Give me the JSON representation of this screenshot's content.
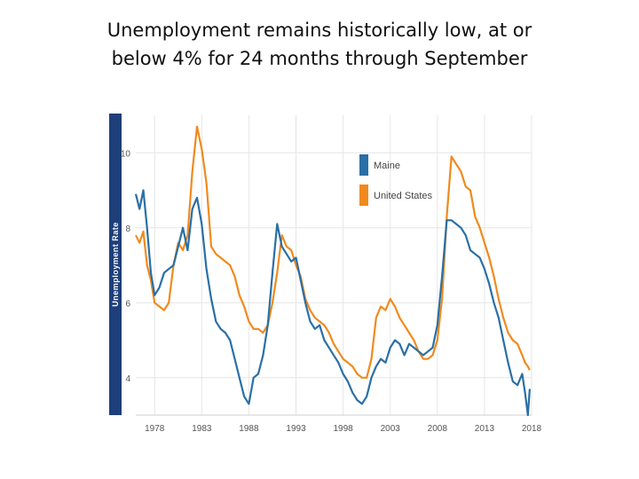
{
  "title_line1": "Unemployment remains historically low, at or",
  "title_line2": "below 4% for 24 months through September",
  "chart_data": {
    "type": "line",
    "ylabel": "Unemployment Rate",
    "xlim": [
      1976,
      2018
    ],
    "ylim": [
      3,
      11
    ],
    "y_ticks": [
      4,
      6,
      8,
      10
    ],
    "x_ticks": [
      1978,
      1983,
      1988,
      1993,
      1998,
      2003,
      2008,
      2013,
      2018
    ],
    "grid": true,
    "legend_position": "top-right",
    "colors": {
      "axis_bar": "#1f3f7a",
      "grid": "#e6e6e6",
      "maine": "#2a6fa6",
      "us": "#f08a1d"
    },
    "series": [
      {
        "name": "Maine",
        "x": [
          1976,
          1976.4,
          1976.8,
          1977.2,
          1977.6,
          1978,
          1978.5,
          1979,
          1979.5,
          1980,
          1980.5,
          1981,
          1981.5,
          1982,
          1982.5,
          1983,
          1983.5,
          1984,
          1984.5,
          1985,
          1985.5,
          1986,
          1986.5,
          1987,
          1987.5,
          1988,
          1988.5,
          1989,
          1989.5,
          1990,
          1990.5,
          1991,
          1991.5,
          1992,
          1992.5,
          1993,
          1993.5,
          1994,
          1994.5,
          1995,
          1995.5,
          1996,
          1996.5,
          1997,
          1997.5,
          1998,
          1998.5,
          1999,
          1999.5,
          2000,
          2000.5,
          2001,
          2001.5,
          2002,
          2002.5,
          2003,
          2003.5,
          2004,
          2004.5,
          2005,
          2005.5,
          2006,
          2006.5,
          2007,
          2007.5,
          2008,
          2008.5,
          2009,
          2009.5,
          2010,
          2010.5,
          2011,
          2011.5,
          2012,
          2012.5,
          2013,
          2013.5,
          2014,
          2014.5,
          2015,
          2015.5,
          2016,
          2016.5,
          2017,
          2017.3,
          2017.6,
          2017.8
        ],
        "values": [
          8.9,
          8.5,
          9.0,
          8.0,
          6.8,
          6.2,
          6.4,
          6.8,
          6.9,
          7.0,
          7.5,
          8.0,
          7.4,
          8.5,
          8.8,
          8.1,
          6.9,
          6.1,
          5.5,
          5.3,
          5.2,
          5.0,
          4.5,
          4.0,
          3.5,
          3.3,
          4.0,
          4.1,
          4.6,
          5.4,
          6.8,
          8.1,
          7.5,
          7.3,
          7.1,
          7.2,
          6.6,
          6.0,
          5.5,
          5.3,
          5.4,
          5.0,
          4.8,
          4.6,
          4.4,
          4.1,
          3.9,
          3.6,
          3.4,
          3.3,
          3.5,
          4.0,
          4.3,
          4.5,
          4.4,
          4.8,
          5.0,
          4.9,
          4.6,
          4.9,
          4.8,
          4.7,
          4.6,
          4.7,
          4.8,
          5.4,
          6.7,
          8.2,
          8.2,
          8.1,
          8.0,
          7.8,
          7.4,
          7.3,
          7.2,
          6.9,
          6.5,
          6.0,
          5.6,
          5.0,
          4.4,
          3.9,
          3.8,
          4.1,
          3.6,
          3.0,
          3.7
        ]
      },
      {
        "name": "United States",
        "x": [
          1976,
          1976.4,
          1976.8,
          1977.2,
          1977.6,
          1978,
          1978.5,
          1979,
          1979.5,
          1980,
          1980.5,
          1981,
          1981.5,
          1982,
          1982.5,
          1983,
          1983.5,
          1984,
          1984.5,
          1985,
          1985.5,
          1986,
          1986.5,
          1987,
          1987.5,
          1988,
          1988.5,
          1989,
          1989.5,
          1990,
          1990.5,
          1991,
          1991.5,
          1992,
          1992.5,
          1993,
          1993.5,
          1994,
          1994.5,
          1995,
          1995.5,
          1996,
          1996.5,
          1997,
          1997.5,
          1998,
          1998.5,
          1999,
          1999.5,
          2000,
          2000.5,
          2001,
          2001.5,
          2002,
          2002.5,
          2003,
          2003.5,
          2004,
          2004.5,
          2005,
          2005.5,
          2006,
          2006.5,
          2007,
          2007.5,
          2008,
          2008.5,
          2009,
          2009.5,
          2010,
          2010.5,
          2011,
          2011.5,
          2012,
          2012.5,
          2013,
          2013.5,
          2014,
          2014.5,
          2015,
          2015.5,
          2016,
          2016.5,
          2017,
          2017.3,
          2017.6,
          2017.8
        ],
        "values": [
          7.8,
          7.6,
          7.9,
          7.0,
          6.6,
          6.0,
          5.9,
          5.8,
          6.0,
          7.0,
          7.6,
          7.4,
          7.8,
          9.5,
          10.7,
          10.1,
          9.2,
          7.5,
          7.3,
          7.2,
          7.1,
          7.0,
          6.7,
          6.2,
          5.9,
          5.5,
          5.3,
          5.3,
          5.2,
          5.4,
          6.0,
          6.8,
          7.8,
          7.5,
          7.4,
          7.0,
          6.7,
          6.1,
          5.8,
          5.6,
          5.5,
          5.4,
          5.2,
          4.9,
          4.7,
          4.5,
          4.4,
          4.3,
          4.1,
          4.0,
          4.0,
          4.5,
          5.6,
          5.9,
          5.8,
          6.1,
          5.9,
          5.6,
          5.4,
          5.2,
          5.0,
          4.7,
          4.5,
          4.5,
          4.6,
          5.0,
          6.1,
          8.3,
          9.9,
          9.7,
          9.5,
          9.1,
          9.0,
          8.3,
          8.0,
          7.6,
          7.2,
          6.7,
          6.1,
          5.6,
          5.2,
          5.0,
          4.9,
          4.6,
          4.4,
          4.3,
          4.2
        ]
      }
    ]
  }
}
